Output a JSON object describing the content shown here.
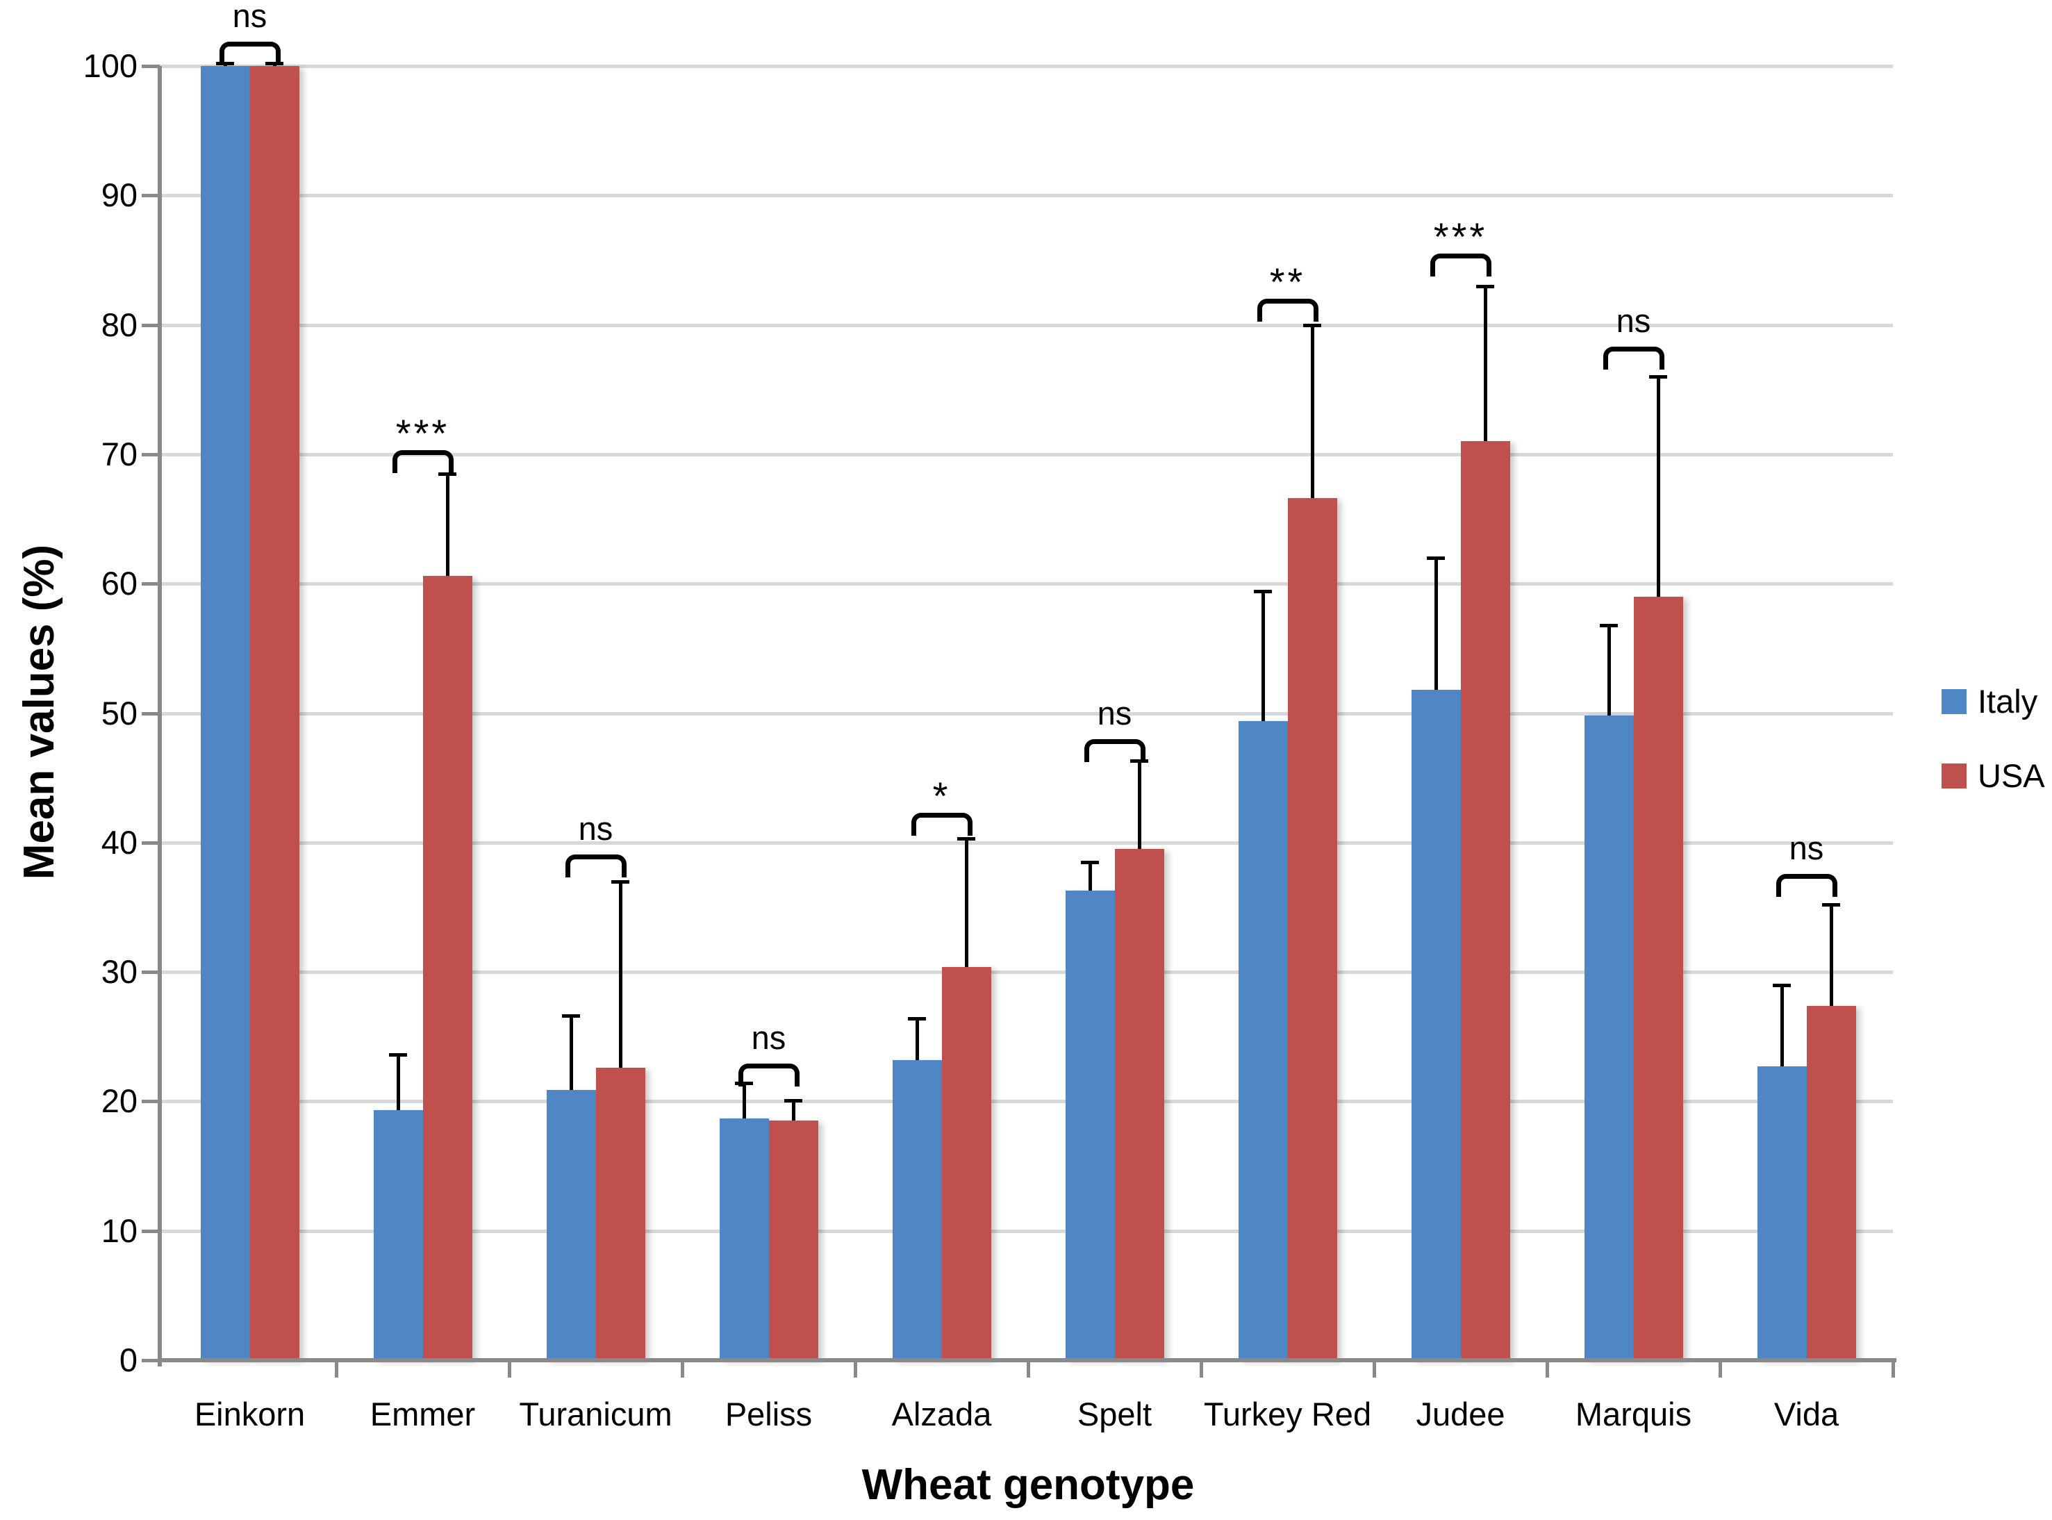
{
  "chart_data": {
    "type": "bar",
    "title": "",
    "xlabel": "Wheat genotype",
    "ylabel": "Mean values (%)",
    "ylim": [
      0,
      100
    ],
    "ytick_step": 10,
    "grid": "horizontal",
    "legend_position": "right",
    "axis_color": "#898989",
    "gridline_color": "#D8D8D8",
    "error_bar_color": "#000000",
    "categories": [
      "Einkorn",
      "Emmer",
      "Turanicum",
      "Peliss",
      "Alzada",
      "Spelt",
      "Turkey Red",
      "Judee",
      "Marquis",
      "Vida"
    ],
    "series": [
      {
        "name": "Italy",
        "color": "#4E86C6",
        "values": [
          100,
          19.3,
          20.9,
          18.7,
          23.2,
          36.3,
          49.4,
          51.8,
          49.8,
          22.7
        ],
        "error_tops": [
          100.2,
          23.6,
          26.6,
          21.4,
          26.4,
          38.5,
          59.4,
          62,
          56.8,
          29
        ]
      },
      {
        "name": "USA",
        "color": "#C0504D",
        "values": [
          100,
          60.6,
          22.6,
          18.5,
          30.4,
          39.5,
          66.6,
          71,
          59,
          27.4
        ],
        "error_tops": [
          100.2,
          68.5,
          37,
          20.1,
          40.3,
          46.3,
          80,
          83,
          76,
          35.2
        ]
      }
    ],
    "significance": [
      {
        "category": "Einkorn",
        "label": "ns",
        "bracket_y": 101.9
      },
      {
        "category": "Emmer",
        "label": "***",
        "bracket_y": 70.3
      },
      {
        "category": "Turanicum",
        "label": "ns",
        "bracket_y": 39.1
      },
      {
        "category": "Peliss",
        "label": "ns",
        "bracket_y": 22.9
      },
      {
        "category": "Alzada",
        "label": "*",
        "bracket_y": 42.3
      },
      {
        "category": "Spelt",
        "label": "ns",
        "bracket_y": 48
      },
      {
        "category": "Turkey Red",
        "label": "**",
        "bracket_y": 82
      },
      {
        "category": "Judee",
        "label": "***",
        "bracket_y": 85.5
      },
      {
        "category": "Marquis",
        "label": "ns",
        "bracket_y": 78.3
      },
      {
        "category": "Vida",
        "label": "ns",
        "bracket_y": 37.6
      }
    ]
  }
}
